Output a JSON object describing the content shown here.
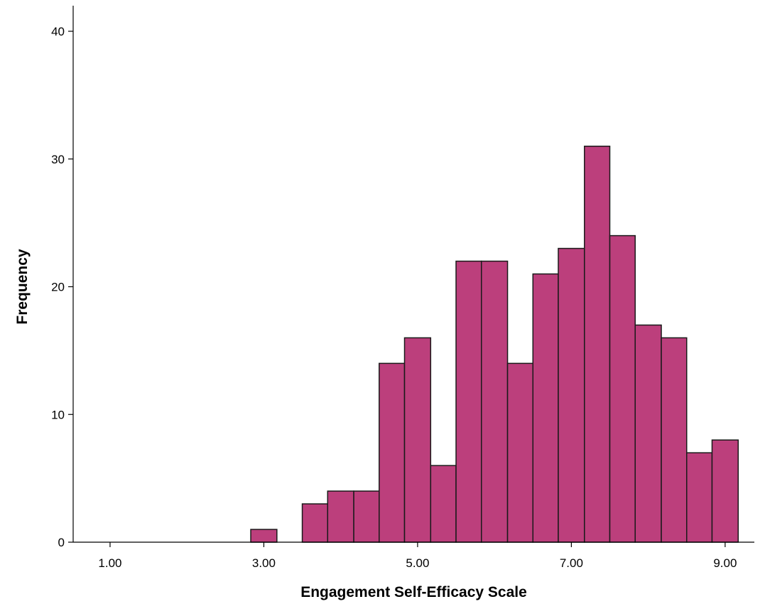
{
  "chart_data": {
    "type": "bar",
    "title": "",
    "xlabel": "Engagement Self-Efficacy Scale",
    "ylabel": "Frequency",
    "xlim": [
      0.52,
      9.38
    ],
    "ylim": [
      0,
      40
    ],
    "x_ticks": [
      1,
      3,
      5,
      7,
      9
    ],
    "x_tick_labels": [
      "1.00",
      "3.00",
      "5.00",
      "7.00",
      "9.00"
    ],
    "y_ticks": [
      0,
      10,
      20,
      30,
      40
    ],
    "y_tick_labels": [
      "0",
      "10",
      "20",
      "30",
      "40"
    ],
    "bin_width": 0.333,
    "bins": [
      {
        "start": 2.83,
        "end": 3.17,
        "count": 1
      },
      {
        "start": 3.5,
        "end": 3.83,
        "count": 3
      },
      {
        "start": 3.83,
        "end": 4.17,
        "count": 4
      },
      {
        "start": 4.17,
        "end": 4.5,
        "count": 4
      },
      {
        "start": 4.5,
        "end": 4.83,
        "count": 14
      },
      {
        "start": 4.83,
        "end": 5.17,
        "count": 16
      },
      {
        "start": 5.17,
        "end": 5.5,
        "count": 6
      },
      {
        "start": 5.5,
        "end": 5.83,
        "count": 22
      },
      {
        "start": 5.83,
        "end": 6.17,
        "count": 22
      },
      {
        "start": 6.17,
        "end": 6.5,
        "count": 14
      },
      {
        "start": 6.5,
        "end": 6.83,
        "count": 21
      },
      {
        "start": 6.83,
        "end": 7.17,
        "count": 23
      },
      {
        "start": 7.17,
        "end": 7.5,
        "count": 31
      },
      {
        "start": 7.5,
        "end": 7.83,
        "count": 24
      },
      {
        "start": 7.83,
        "end": 8.17,
        "count": 17
      },
      {
        "start": 8.17,
        "end": 8.5,
        "count": 16
      },
      {
        "start": 8.5,
        "end": 8.83,
        "count": 7
      },
      {
        "start": 8.83,
        "end": 9.17,
        "count": 8
      }
    ],
    "grid": false,
    "legend": "none",
    "colors": {
      "bar_fill": "#BC3F7C",
      "bar_stroke": "#1a1a1a",
      "axis": "#000000"
    }
  }
}
